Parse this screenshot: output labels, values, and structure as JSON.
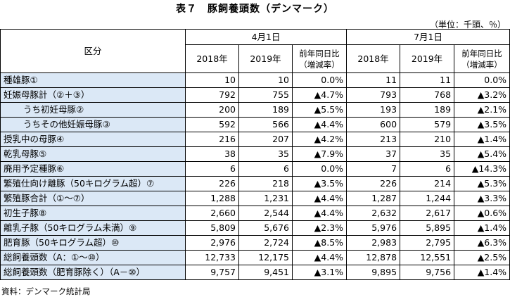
{
  "title": "表７　豚飼養頭数（デンマーク）",
  "unit": "（単位：千頭、％）",
  "header": {
    "category": "区分",
    "period1": "4月1日",
    "period2": "7月1日",
    "year1": "2018年",
    "year2": "2019年",
    "rate_line1": "前年同日比",
    "rate_line2": "（増減率）"
  },
  "rows": [
    {
      "label": "種雄豚①",
      "a18": "10",
      "a19": "10",
      "ar": "0.0%",
      "j18": "11",
      "j19": "11",
      "jr": "0.0%"
    },
    {
      "label": "妊娠母豚計（②＋③）",
      "a18": "792",
      "a19": "755",
      "ar": "▲4.7%",
      "j18": "793",
      "j19": "768",
      "jr": "▲3.2%"
    },
    {
      "label": "うち初妊母豚②",
      "a18": "200",
      "a19": "189",
      "ar": "▲5.5%",
      "j18": "193",
      "j19": "189",
      "jr": "▲2.1%"
    },
    {
      "label": "うちその他妊娠母豚③",
      "a18": "592",
      "a19": "566",
      "ar": "▲4.4%",
      "j18": "600",
      "j19": "579",
      "jr": "▲3.5%"
    },
    {
      "label": "授乳中の母豚④",
      "a18": "216",
      "a19": "207",
      "ar": "▲4.2%",
      "j18": "213",
      "j19": "210",
      "jr": "▲1.4%"
    },
    {
      "label": "乾乳母豚⑤",
      "a18": "38",
      "a19": "35",
      "ar": "▲7.9%",
      "j18": "37",
      "j19": "35",
      "jr": "▲5.4%"
    },
    {
      "label": "廃用予定種豚⑥",
      "a18": "6",
      "a19": "6",
      "ar": "0.0%",
      "j18": "7",
      "j19": "6",
      "jr": "▲14.3%"
    },
    {
      "label": "繁殖仕向け離豚（50キログラム超）⑦",
      "a18": "226",
      "a19": "218",
      "ar": "▲3.5%",
      "j18": "226",
      "j19": "214",
      "jr": "▲5.3%"
    },
    {
      "label": "繁殖豚合計（①〜⑦）",
      "a18": "1,288",
      "a19": "1,231",
      "ar": "▲4.4%",
      "j18": "1,287",
      "j19": "1,244",
      "jr": "▲3.3%"
    },
    {
      "label": "初生子豚⑧",
      "a18": "2,660",
      "a19": "2,544",
      "ar": "▲4.4%",
      "j18": "2,632",
      "j19": "2,617",
      "jr": "▲0.6%"
    },
    {
      "label": "離乳子豚（50キログラム未満）⑨",
      "a18": "5,809",
      "a19": "5,676",
      "ar": "▲2.3%",
      "j18": "5,976",
      "j19": "5,895",
      "jr": "▲1.4%"
    },
    {
      "label": "肥育豚（50キログラム超）⑩",
      "a18": "2,976",
      "a19": "2,724",
      "ar": "▲8.5%",
      "j18": "2,983",
      "j19": "2,795",
      "jr": "▲6.3%"
    },
    {
      "label": "総飼養頭数（A：①〜⑩）",
      "a18": "12,733",
      "a19": "12,175",
      "ar": "▲4.4%",
      "j18": "12,878",
      "j19": "12,551",
      "jr": "▲2.5%"
    },
    {
      "label": "総飼養頭数（肥育豚除く）（A－⑩）",
      "a18": "9,757",
      "a19": "9,451",
      "ar": "▲3.1%",
      "j18": "9,895",
      "j19": "9,756",
      "jr": "▲1.4%"
    }
  ],
  "source": "資料：デンマーク統計局"
}
